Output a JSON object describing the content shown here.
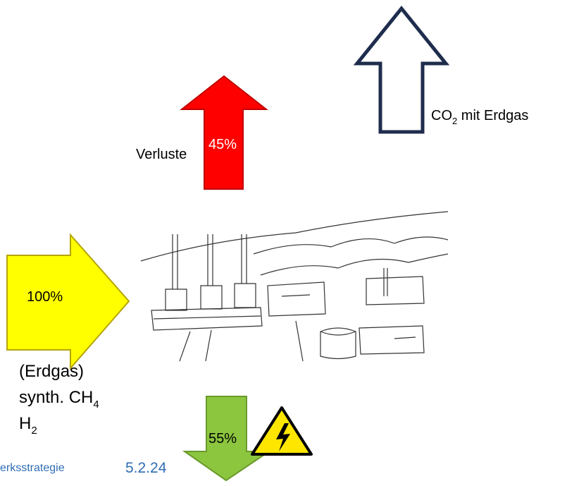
{
  "arrows": {
    "losses": {
      "label": "Verluste",
      "percent": "45%"
    },
    "co2": {
      "main": "CO",
      "sub": "2",
      "rest": " mit Erdgas"
    },
    "input": {
      "percent": "100%"
    },
    "output": {
      "percent": "55%"
    }
  },
  "fuels": [
    {
      "main": "(Erdgas)"
    },
    {
      "main": "synth. CH",
      "sub": "4"
    },
    {
      "main": "H",
      "sub": "2"
    }
  ],
  "footer": {
    "left": "erksstrategie",
    "date": "5.2.24"
  }
}
